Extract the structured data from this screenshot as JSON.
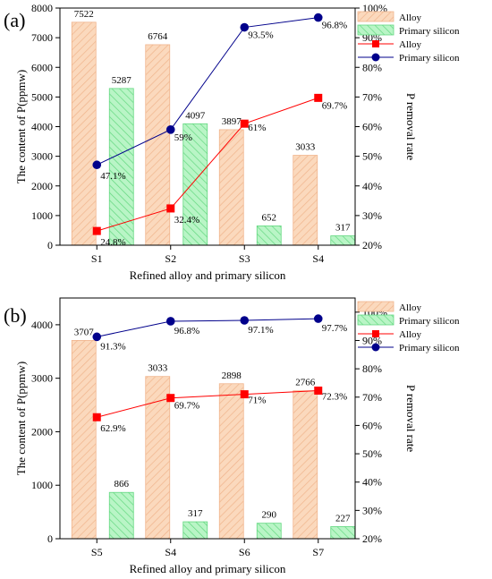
{
  "chart_data": [
    {
      "type": "bar",
      "panel_label": "(a)",
      "categories": [
        "S1",
        "S2",
        "S3",
        "S4"
      ],
      "xlabel": "Refined alloy and primary silicon",
      "ylabel": "The content of P(ppmw)",
      "y2label": "P removal rate",
      "ylim": [
        0,
        8000
      ],
      "yticks": [
        "0",
        "1000",
        "2000",
        "3000",
        "4000",
        "5000",
        "6000",
        "7000",
        "8000"
      ],
      "y2lim": [
        20,
        100
      ],
      "y2ticks": [
        "20%",
        "30%",
        "40%",
        "50%",
        "60%",
        "70%",
        "80%",
        "90%",
        "100%"
      ],
      "bar_series": [
        {
          "name": "Alloy",
          "values": [
            7522,
            6764,
            3897,
            3033
          ],
          "labels": [
            "7522",
            "6764",
            "3897",
            "3033"
          ],
          "color": "#fbd9bd",
          "hatch": "#f0b48c"
        },
        {
          "name": "Primary silicon",
          "values": [
            5287,
            4097,
            652,
            317
          ],
          "labels": [
            "5287",
            "4097",
            "652",
            "317"
          ],
          "color": "#b9f5c6",
          "hatch": "#63d880"
        }
      ],
      "line_series": [
        {
          "name": "Alloy",
          "values": [
            24.8,
            32.4,
            61,
            69.7
          ],
          "labels": [
            "24.8%",
            "32.4%",
            "61%",
            "69.7%"
          ],
          "color": "#ff0000",
          "marker": "square"
        },
        {
          "name": "Primary silicon",
          "values": [
            47.1,
            59,
            93.5,
            96.8
          ],
          "labels": [
            "47.1%",
            "59%",
            "93.5%",
            "96.8%"
          ],
          "color": "#00008b",
          "marker": "circle"
        }
      ],
      "legend": "top-right",
      "grid": false
    },
    {
      "type": "bar",
      "panel_label": "(b)",
      "categories": [
        "S5",
        "S4",
        "S6",
        "S7"
      ],
      "xlabel": "Refined alloy and primary silicon",
      "ylabel": "The content of P(ppmw)",
      "y2label": "P removal rate",
      "ylim": [
        0,
        4500
      ],
      "yticks": [
        "0",
        "1000",
        "2000",
        "3000",
        "4000"
      ],
      "y2lim": [
        20,
        105
      ],
      "y2ticks": [
        "20%",
        "30%",
        "40%",
        "50%",
        "60%",
        "70%",
        "80%",
        "90%",
        "100%"
      ],
      "bar_series": [
        {
          "name": "Alloy",
          "values": [
            3707,
            3033,
            2898,
            2766
          ],
          "labels": [
            "3707",
            "3033",
            "2898",
            "2766"
          ],
          "color": "#fbd9bd",
          "hatch": "#f0b48c"
        },
        {
          "name": "Primary silicon",
          "values": [
            866,
            317,
            290,
            227
          ],
          "labels": [
            "866",
            "317",
            "290",
            "227"
          ],
          "color": "#b9f5c6",
          "hatch": "#63d880"
        }
      ],
      "line_series": [
        {
          "name": "Alloy",
          "values": [
            62.9,
            69.7,
            71,
            72.3
          ],
          "labels": [
            "62.9%",
            "69.7%",
            "71%",
            "72.3%"
          ],
          "color": "#ff0000",
          "marker": "square"
        },
        {
          "name": "Primary silicon",
          "values": [
            91.3,
            96.8,
            97.1,
            97.7
          ],
          "labels": [
            "91.3%",
            "96.8%",
            "97.1%",
            "97.7%"
          ],
          "color": "#00008b",
          "marker": "circle"
        }
      ],
      "legend": "top-right",
      "grid": false
    }
  ]
}
